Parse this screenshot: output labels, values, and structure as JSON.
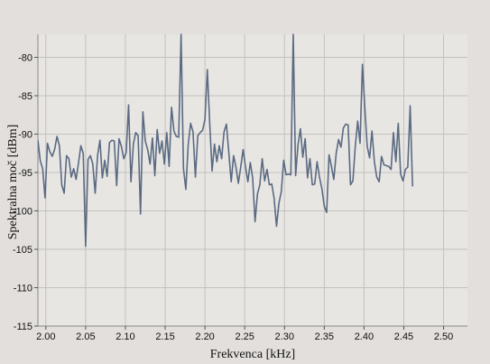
{
  "chart_data": {
    "type": "line",
    "xlabel": "Frekvenca [kHz]",
    "ylabel": "Spektralna moč [dBm]",
    "xlim": [
      1.99,
      2.53
    ],
    "ylim": [
      -115,
      -77
    ],
    "xticks": [
      2.0,
      2.05,
      2.1,
      2.15,
      2.2,
      2.25,
      2.3,
      2.35,
      2.4,
      2.45,
      2.5
    ],
    "xtick_labels": [
      "2.00",
      "2.05",
      "2.10",
      "2.15",
      "2.20",
      "2.25",
      "2.30",
      "2.35",
      "2.40",
      "2.45",
      "2.50"
    ],
    "yticks": [
      -80,
      -85,
      -90,
      -95,
      -100,
      -105,
      -110,
      -115
    ],
    "ytick_labels": [
      "-80",
      "-85",
      "-90",
      "-95",
      "-100",
      "-105",
      "-110",
      "-115"
    ],
    "grid": true,
    "line_color": "#5a6a82",
    "series": [
      {
        "x_start": 1.99,
        "x_step": 0.003,
        "values": [
          -90.8,
          -93.5,
          -94.5,
          -98.3,
          -91.2,
          -92.3,
          -92.9,
          -92.0,
          -90.3,
          -91.5,
          -96.6,
          -97.7,
          -92.8,
          -93.2,
          -95.6,
          -94.5,
          -95.9,
          -93.8,
          -91.5,
          -92.5,
          -104.6,
          -93.3,
          -92.8,
          -93.9,
          -97.7,
          -92.8,
          -90.8,
          -95.7,
          -93.4,
          -95.5,
          -91.1,
          -90.8,
          -90.9,
          -96.7,
          -90.6,
          -91.6,
          -93.2,
          -92.4,
          -86.2,
          -96.2,
          -91.3,
          -89.8,
          -90.2,
          -100.4,
          -87.1,
          -90.9,
          -92.0,
          -93.9,
          -90.5,
          -95.4,
          -89.4,
          -92.5,
          -90.9,
          -93.9,
          -89.8,
          -94.2,
          -86.5,
          -89.6,
          -90.3,
          -90.4,
          -77.0,
          -94.5,
          -97.2,
          -91.3,
          -88.6,
          -89.7,
          -95.6,
          -90.2,
          -89.8,
          -89.5,
          -88.1,
          -81.6,
          -88.6,
          -94.8,
          -91.3,
          -93.6,
          -91.5,
          -93.2,
          -89.7,
          -88.7,
          -92.4,
          -96.2,
          -92.8,
          -94.3,
          -96.4,
          -94.3,
          -92.0,
          -94.3,
          -96.2,
          -93.7,
          -95.7,
          -101.4,
          -97.8,
          -96.6,
          -93.2,
          -96.1,
          -94.6,
          -96.6,
          -96.5,
          -98.4,
          -102.0,
          -99.0,
          -97.5,
          -93.4,
          -95.3,
          -95.2,
          -95.3,
          -77.0,
          -95.4,
          -91.4,
          -89.3,
          -93.0,
          -90.6,
          -95.7,
          -93.2,
          -96.6,
          -96.5,
          -93.6,
          -95.6,
          -97.1,
          -99.4,
          -100.2,
          -92.7,
          -94.2,
          -95.9,
          -92.5,
          -90.7,
          -91.7,
          -89.2,
          -88.7,
          -88.8,
          -96.6,
          -96.1,
          -91.6,
          -88.3,
          -91.2,
          -80.9,
          -86.6,
          -91.6,
          -93.1,
          -89.6,
          -93.6,
          -95.6,
          -96.2,
          -92.9,
          -94.0,
          -94.1,
          -94.2,
          -94.6,
          -89.8,
          -93.6,
          -88.6,
          -95.2,
          -96.1,
          -94.6,
          -94.3,
          -86.3,
          -96.8
        ]
      }
    ]
  }
}
